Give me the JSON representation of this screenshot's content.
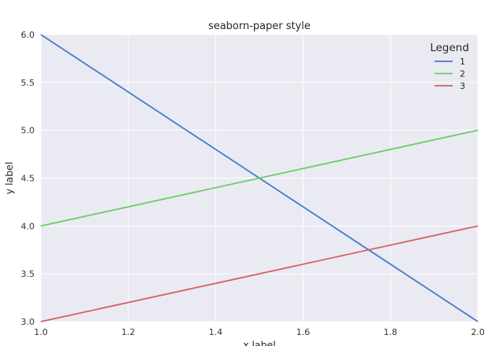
{
  "chart_data": {
    "type": "line",
    "title": "seaborn-paper style",
    "xlabel": "x label",
    "ylabel": "y label",
    "xlim": [
      1.0,
      2.0
    ],
    "ylim": [
      3.0,
      6.0
    ],
    "xticks": [
      "1.0",
      "1.2",
      "1.4",
      "1.6",
      "1.8",
      "2.0"
    ],
    "yticks": [
      "3.0",
      "3.5",
      "4.0",
      "4.5",
      "5.0",
      "5.5",
      "6.0"
    ],
    "grid": true,
    "background": "#EAEAF2",
    "legend": {
      "title": "Legend",
      "position": "top-right"
    },
    "series": [
      {
        "name": "1",
        "color": "#4878CF",
        "x": [
          1.0,
          2.0
        ],
        "y": [
          6.0,
          3.0
        ]
      },
      {
        "name": "2",
        "color": "#6ACC65",
        "x": [
          1.0,
          2.0
        ],
        "y": [
          4.0,
          5.0
        ]
      },
      {
        "name": "3",
        "color": "#D65F5F",
        "x": [
          1.0,
          2.0
        ],
        "y": [
          3.0,
          4.0
        ]
      }
    ]
  }
}
